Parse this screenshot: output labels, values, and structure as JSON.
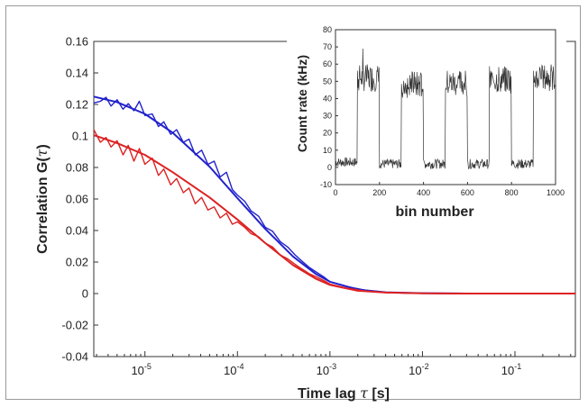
{
  "colors": {
    "blue": "#2222cc",
    "red": "#dd2222",
    "inset": "#333333",
    "frame": "#9a9a9a"
  },
  "chart_data": [
    {
      "type": "line",
      "xlabel_prefix": "Time lag ",
      "xlabel_symbol": "τ",
      "xlabel_suffix": " [s]",
      "ylabel_prefix": "Correlation G(",
      "ylabel_symbol": "τ",
      "ylabel_suffix": ")",
      "xscale": "log",
      "xlim": [
        2.8e-06,
        0.45
      ],
      "ylim": [
        -0.04,
        0.16
      ],
      "yticks": [
        "-0.04",
        "-0.02",
        "0",
        "0.02",
        "0.04",
        "0.06",
        "0.08",
        "0.1",
        "0.12",
        "0.14",
        "0.16"
      ],
      "xticks": [
        {
          "base": "10",
          "exp": "-5",
          "value": 1e-05
        },
        {
          "base": "10",
          "exp": "-4",
          "value": 0.0001
        },
        {
          "base": "10",
          "exp": "-3",
          "value": 0.001
        },
        {
          "base": "10",
          "exp": "-2",
          "value": 0.01
        },
        {
          "base": "10",
          "exp": "-1",
          "value": 0.1
        }
      ],
      "grid": false,
      "series": [
        {
          "color": "blue",
          "kind": "fit",
          "x": [
            2.8e-06,
            5e-06,
            1e-05,
            2e-05,
            5e-05,
            0.0001,
            0.0002,
            0.0004,
            0.0007,
            0.001,
            0.002,
            0.004,
            0.01,
            0.03,
            0.1,
            0.45
          ],
          "y": [
            0.125,
            0.1215,
            0.114,
            0.102,
            0.0805,
            0.0605,
            0.041,
            0.0235,
            0.0125,
            0.0075,
            0.0025,
            0.0008,
            0.0002,
            0.0,
            0.0,
            0.0
          ]
        },
        {
          "color": "blue",
          "kind": "data",
          "x": [
            2.8e-06,
            3.3e-06,
            3.8e-06,
            4.3e-06,
            5e-06,
            5.8e-06,
            6.6e-06,
            7.6e-06,
            8.7e-06,
            1e-05,
            1.2e-05,
            1.4e-05,
            1.6e-05,
            1.9e-05,
            2.2e-05,
            2.6e-05,
            3e-05,
            3.5e-05,
            4.1e-05,
            4.8e-05,
            5.6e-05,
            6.5e-05,
            7.6e-05,
            8.8e-05,
            0.0001,
            0.00012,
            0.00014,
            0.00017,
            0.0002,
            0.00024,
            0.00029,
            0.00035,
            0.00042,
            0.0005,
            0.0006,
            0.00072,
            0.00086,
            0.001,
            0.0015,
            0.0025,
            0.004,
            0.007,
            0.012,
            0.025,
            0.06,
            0.15,
            0.45
          ],
          "y": [
            0.121,
            0.122,
            0.1245,
            0.119,
            0.123,
            0.117,
            0.1205,
            0.116,
            0.122,
            0.113,
            0.114,
            0.106,
            0.109,
            0.101,
            0.104,
            0.096,
            0.098,
            0.088,
            0.091,
            0.082,
            0.084,
            0.074,
            0.077,
            0.066,
            0.0625,
            0.0585,
            0.0525,
            0.049,
            0.042,
            0.0395,
            0.033,
            0.0295,
            0.0245,
            0.0205,
            0.0165,
            0.0135,
            0.0105,
            0.0075,
            0.0045,
            0.002,
            0.0008,
            0.0003,
            0.0001,
            0.0,
            0.0,
            0.0,
            0.0
          ]
        },
        {
          "color": "red",
          "kind": "fit",
          "x": [
            2.8e-06,
            5e-06,
            1e-05,
            2e-05,
            5e-05,
            0.0001,
            0.0002,
            0.0004,
            0.0007,
            0.001,
            0.002,
            0.004,
            0.01,
            0.03,
            0.1,
            0.45
          ],
          "y": [
            0.1005,
            0.0955,
            0.088,
            0.077,
            0.061,
            0.047,
            0.032,
            0.018,
            0.0095,
            0.0055,
            0.0018,
            0.0006,
            0.0001,
            0.0,
            0.0,
            0.0
          ]
        },
        {
          "color": "red",
          "kind": "data",
          "x": [
            2.8e-06,
            3.3e-06,
            3.8e-06,
            4.3e-06,
            5e-06,
            5.8e-06,
            6.6e-06,
            7.6e-06,
            8.7e-06,
            1e-05,
            1.2e-05,
            1.4e-05,
            1.6e-05,
            1.9e-05,
            2.2e-05,
            2.6e-05,
            3e-05,
            3.5e-05,
            4.1e-05,
            4.8e-05,
            5.6e-05,
            6.5e-05,
            7.6e-05,
            8.8e-05,
            0.0001,
            0.00012,
            0.00014,
            0.00017,
            0.0002,
            0.00024,
            0.00029,
            0.00035,
            0.00042,
            0.0005,
            0.0006,
            0.00072,
            0.00086,
            0.001,
            0.0015,
            0.0025,
            0.004,
            0.007,
            0.012,
            0.025,
            0.06,
            0.15,
            0.45
          ],
          "y": [
            0.104,
            0.096,
            0.099,
            0.093,
            0.097,
            0.088,
            0.094,
            0.084,
            0.092,
            0.082,
            0.086,
            0.075,
            0.079,
            0.069,
            0.073,
            0.064,
            0.067,
            0.057,
            0.061,
            0.053,
            0.055,
            0.048,
            0.051,
            0.044,
            0.0455,
            0.042,
            0.038,
            0.036,
            0.032,
            0.0295,
            0.0245,
            0.022,
            0.0185,
            0.0155,
            0.0125,
            0.0105,
            0.0082,
            0.006,
            0.0035,
            0.0015,
            0.0006,
            0.0002,
            0.0001,
            0.0,
            0.0,
            0.0,
            0.0
          ]
        }
      ]
    },
    {
      "type": "line",
      "xlabel": "bin number",
      "ylabel": "Count rate (kHz)",
      "xlim": [
        0,
        1000
      ],
      "ylim": [
        -10,
        80
      ],
      "xticks": [
        "0",
        "200",
        "400",
        "600",
        "800",
        "1000"
      ],
      "yticks": [
        "-10",
        "0",
        "10",
        "20",
        "30",
        "40",
        "50",
        "60",
        "70",
        "80"
      ],
      "grid": false,
      "series": [
        {
          "color": "inset",
          "segments": [
            {
              "x_start": 0,
              "x_end": 100,
              "level": 3
            },
            {
              "x_start": 100,
              "x_end": 200,
              "level": 52
            },
            {
              "x_start": 200,
              "x_end": 300,
              "level": 2
            },
            {
              "x_start": 300,
              "x_end": 400,
              "level": 48
            },
            {
              "x_start": 400,
              "x_end": 500,
              "level": 2
            },
            {
              "x_start": 500,
              "x_end": 600,
              "level": 49
            },
            {
              "x_start": 600,
              "x_end": 700,
              "level": 2
            },
            {
              "x_start": 700,
              "x_end": 800,
              "level": 51
            },
            {
              "x_start": 800,
              "x_end": 900,
              "level": 2
            },
            {
              "x_start": 900,
              "x_end": 1000,
              "level": 52
            }
          ],
          "noise_amplitude": 8
        }
      ]
    }
  ]
}
